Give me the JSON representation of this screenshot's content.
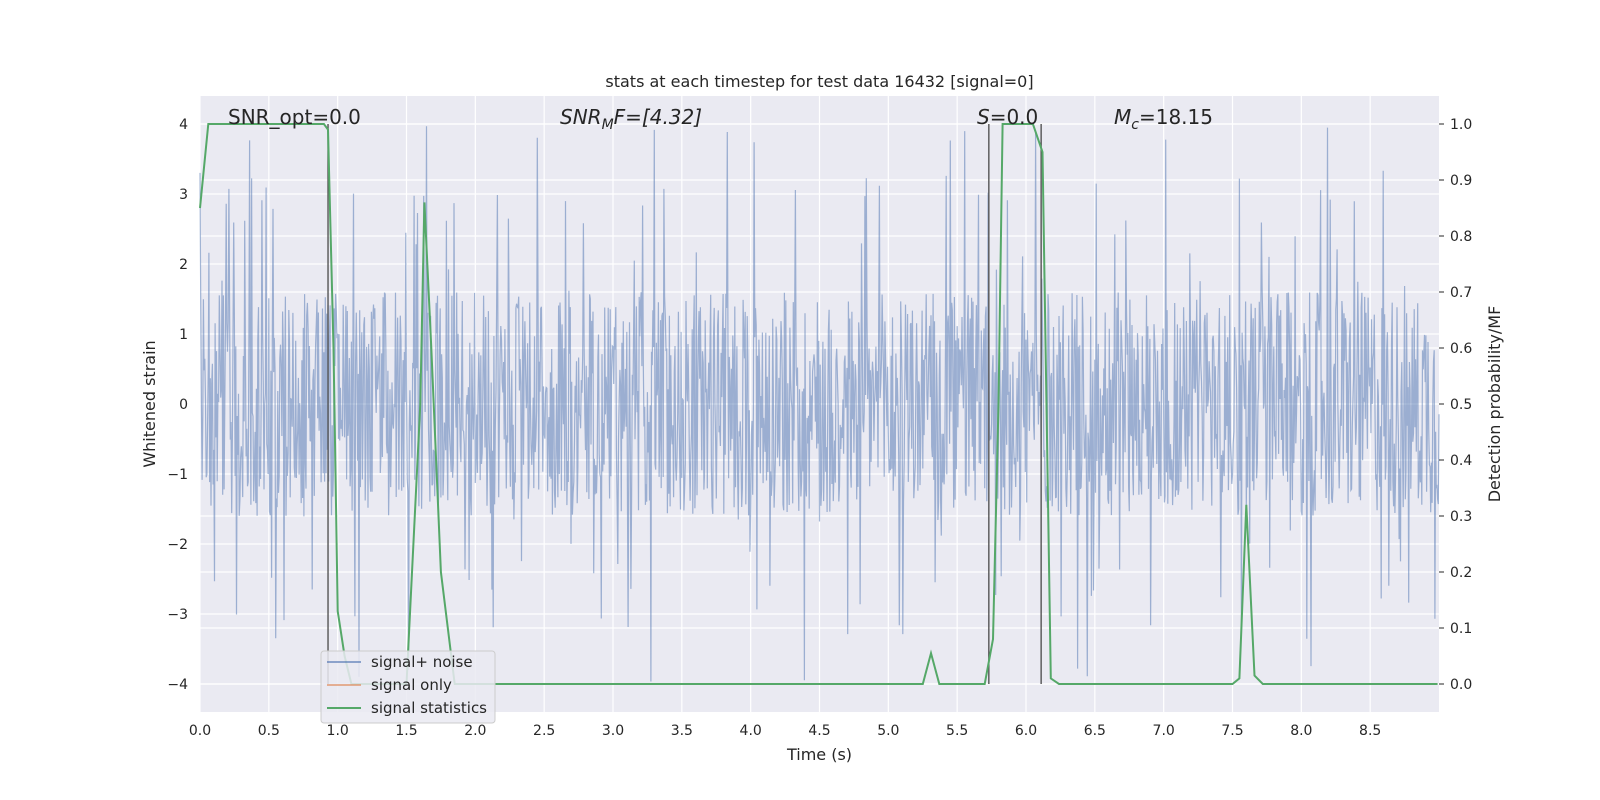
{
  "chart_data": {
    "type": "line",
    "title": "stats at each timestep for test data 16432 [signal=0]",
    "xlabel": "Time (s)",
    "ylabel_left": "Whitened strain",
    "ylabel_right": "Detection probability/MF",
    "xlim": [
      0.0,
      9.0
    ],
    "ylim_left": [
      -4.4,
      4.4
    ],
    "ylim_right": [
      -0.05,
      1.05
    ],
    "xticks": [
      "0.0",
      "0.5",
      "1.0",
      "1.5",
      "2.0",
      "2.5",
      "3.0",
      "3.5",
      "4.0",
      "4.5",
      "5.0",
      "5.5",
      "6.0",
      "6.5",
      "7.0",
      "7.5",
      "8.0",
      "8.5"
    ],
    "yticks_left": [
      "4",
      "3",
      "2",
      "1",
      "0",
      "−1",
      "−2",
      "−3",
      "−4"
    ],
    "yticks_right": [
      "1.0",
      "0.9",
      "0.8",
      "0.7",
      "0.6",
      "0.5",
      "0.4",
      "0.3",
      "0.2",
      "0.1",
      "0.0"
    ],
    "grid": true,
    "legend_position": "bottom-left",
    "annotations": {
      "snr_opt": "SNR_opt=0.0",
      "snr_mf_base": "SNR",
      "snr_mf_sub": "M",
      "snr_mf_rest": "F=[4.32]",
      "s_main": "S",
      "s_rest": "=0.0",
      "mc_base": "M",
      "mc_sub": "c",
      "mc_rest": "=18.15"
    },
    "series": [
      {
        "name": "signal+ noise",
        "color": "#4c72b0",
        "style": "noise band, roughly ±1.6 dense core with spikes up to about ±4",
        "core_amplitude": 1.6,
        "peak_amplitude": 4.0
      },
      {
        "name": "signal only",
        "color": "#dd8452",
        "values": []
      },
      {
        "name": "signal statistics",
        "color": "#55a868",
        "axis": "right",
        "x": [
          0.0,
          0.06,
          0.12,
          0.3,
          0.6,
          0.9,
          0.93,
          0.97,
          1.0,
          1.05,
          1.1,
          1.5,
          1.6,
          1.63,
          1.68,
          1.75,
          1.85,
          2.5,
          5.25,
          5.31,
          5.37,
          5.7,
          5.76,
          5.8,
          5.83,
          6.05,
          6.12,
          6.18,
          6.24,
          7.5,
          7.55,
          7.6,
          7.66,
          7.72,
          8.99
        ],
        "y": [
          0.85,
          1.0,
          1.0,
          1.0,
          1.0,
          1.0,
          0.99,
          0.6,
          0.13,
          0.05,
          0.0,
          0.0,
          0.5,
          0.86,
          0.6,
          0.2,
          0.0,
          0.0,
          0.0,
          0.055,
          0.0,
          0.0,
          0.08,
          0.5,
          1.0,
          1.0,
          0.95,
          0.01,
          0.0,
          0.0,
          0.01,
          0.32,
          0.015,
          0.0,
          0.0
        ]
      }
    ],
    "vertical_markers": [
      0.93,
      5.73,
      6.11
    ]
  }
}
